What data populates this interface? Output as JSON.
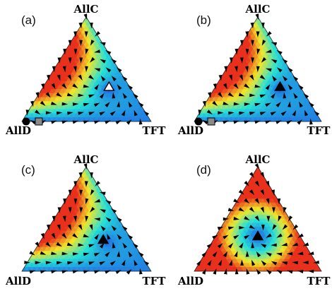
{
  "figure": {
    "panels": [
      {
        "label": "(a)",
        "vertices": {
          "top": "AllC",
          "left": "AllD",
          "right": "TFT"
        },
        "field": "bistable",
        "markers": [
          {
            "name": "alld-stable-point",
            "shape": "circle",
            "fill": "#000000",
            "pos": "left-vertex"
          },
          {
            "name": "alld-unstable-point",
            "shape": "square",
            "fill": "#8a8a8a",
            "pos": "near-left-vertex"
          },
          {
            "name": "interior-fixed-point",
            "shape": "triangle",
            "fill": "#ffffff",
            "pos": "interior-right"
          }
        ]
      },
      {
        "label": "(b)",
        "vertices": {
          "top": "AllC",
          "left": "AllD",
          "right": "TFT"
        },
        "field": "bistable",
        "markers": [
          {
            "name": "alld-stable-point",
            "shape": "circle",
            "fill": "#000000",
            "pos": "left-vertex"
          },
          {
            "name": "alld-unstable-point",
            "shape": "square",
            "fill": "#8a8a8a",
            "pos": "near-left-vertex"
          },
          {
            "name": "interior-fixed-point",
            "shape": "triangle",
            "fill": "#000000",
            "pos": "interior-right"
          }
        ]
      },
      {
        "label": "(c)",
        "vertices": {
          "top": "AllC",
          "left": "AllD",
          "right": "TFT"
        },
        "field": "attractor",
        "markers": [
          {
            "name": "interior-fixed-point",
            "shape": "triangle",
            "fill": "#000000",
            "pos": "interior-right"
          }
        ]
      },
      {
        "label": "(d)",
        "vertices": {
          "top": "AllC",
          "left": "AllD",
          "right": "TFT"
        },
        "field": "center",
        "markers": [
          {
            "name": "interior-fixed-point",
            "shape": "triangle",
            "fill": "#000000",
            "pos": "center"
          }
        ]
      }
    ],
    "colors": {
      "low": "#1f5ee8",
      "mid": "#26e0d8",
      "midHigh": "#f2e82a",
      "high": "#e8301c",
      "arrow": "#000000"
    }
  }
}
